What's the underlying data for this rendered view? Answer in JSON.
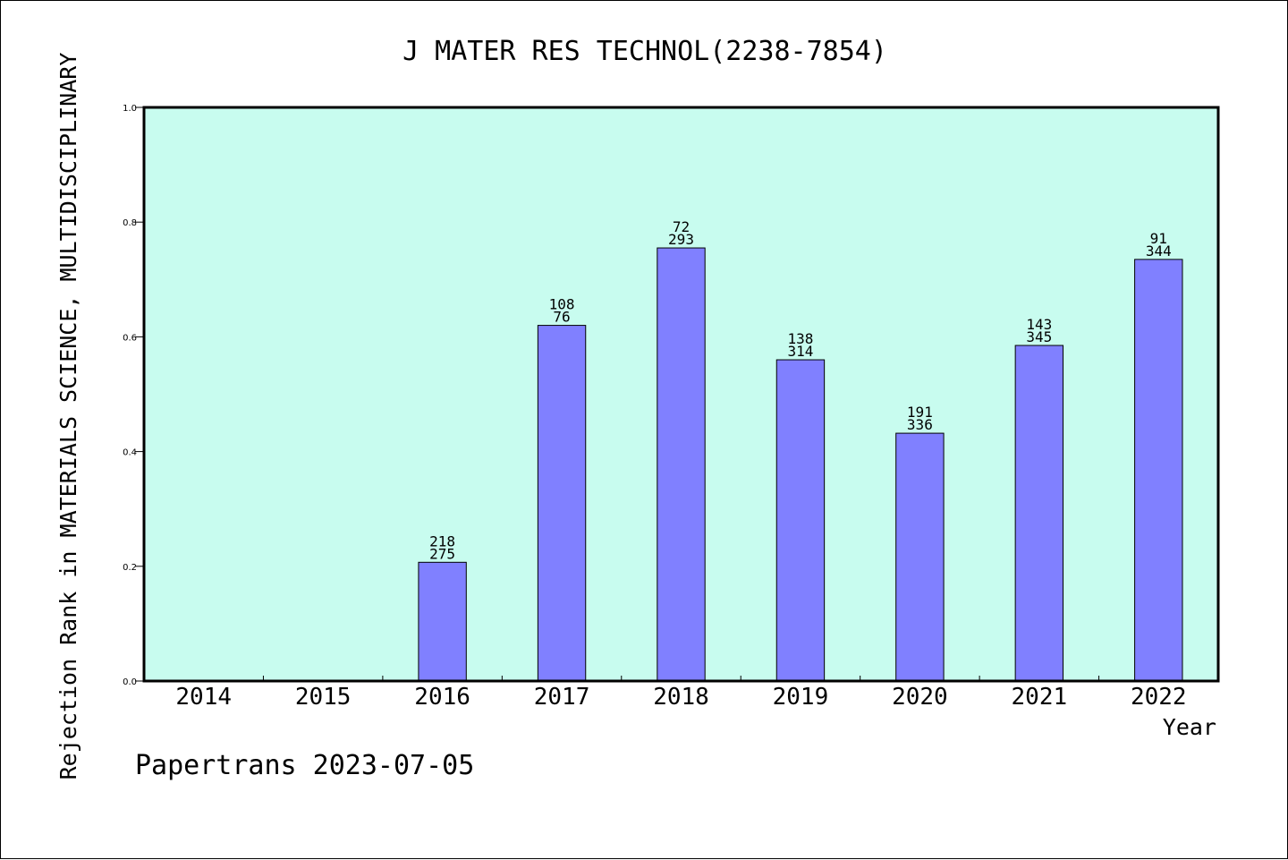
{
  "chart_data": {
    "type": "bar",
    "title": "J MATER RES TECHNOL(2238-7854)",
    "xlabel": "Year",
    "ylabel": "Rejection Rank in MATERIALS SCIENCE, MULTIDISCIPLINARY",
    "categories": [
      "2014",
      "2015",
      "2016",
      "2017",
      "2018",
      "2019",
      "2020",
      "2021",
      "2022"
    ],
    "values": [
      null,
      null,
      0.207,
      0.62,
      0.755,
      0.56,
      0.432,
      0.585,
      0.735
    ],
    "labels_top": [
      "",
      "",
      "218",
      "108",
      "72",
      "138",
      "191",
      "143",
      "91"
    ],
    "labels_bottom": [
      "",
      "",
      "275",
      "76",
      "293",
      "314",
      "336",
      "345",
      "344"
    ],
    "ylim": [
      0,
      1.0
    ],
    "yticks": [
      "0.0",
      "0.2",
      "0.4",
      "0.6",
      "0.8",
      "1.0"
    ],
    "grid": false,
    "legend": "none",
    "plot_background": "#c8fcef",
    "bar_color": "#8080ff"
  },
  "footer": {
    "text": "Papertrans 2023-07-05"
  }
}
